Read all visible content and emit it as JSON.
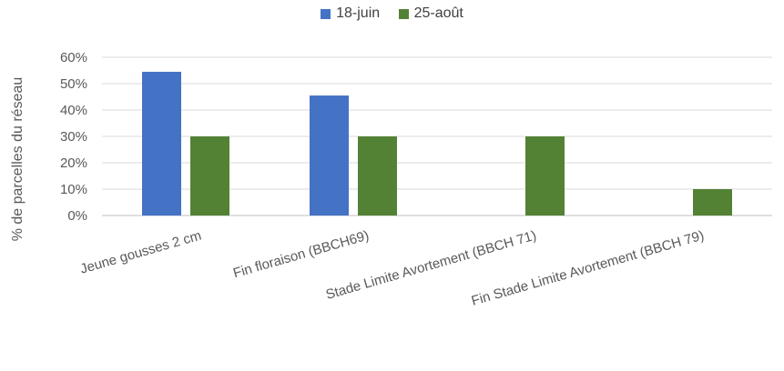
{
  "chart_data": {
    "type": "bar",
    "categories": [
      "Jeune gousses 2 cm",
      "Fin floraison (BBCH69)",
      "Stade Limite Avortement (BBCH 71)",
      "Fin Stade Limite Avortement (BBCH 79)"
    ],
    "series": [
      {
        "name": "18-juin",
        "color": "#4472c4",
        "values": [
          0.545,
          0.455,
          0,
          0
        ]
      },
      {
        "name": "25-août",
        "color": "#548235",
        "values": [
          0.3,
          0.3,
          0.3,
          0.1
        ]
      }
    ],
    "ylabel": "% de parcelles du réseau",
    "ylim": [
      0,
      0.6
    ],
    "yticks": [
      "0%",
      "10%",
      "20%",
      "30%",
      "40%",
      "50%",
      "60%"
    ],
    "grid": true,
    "legend_position": "top-center"
  }
}
